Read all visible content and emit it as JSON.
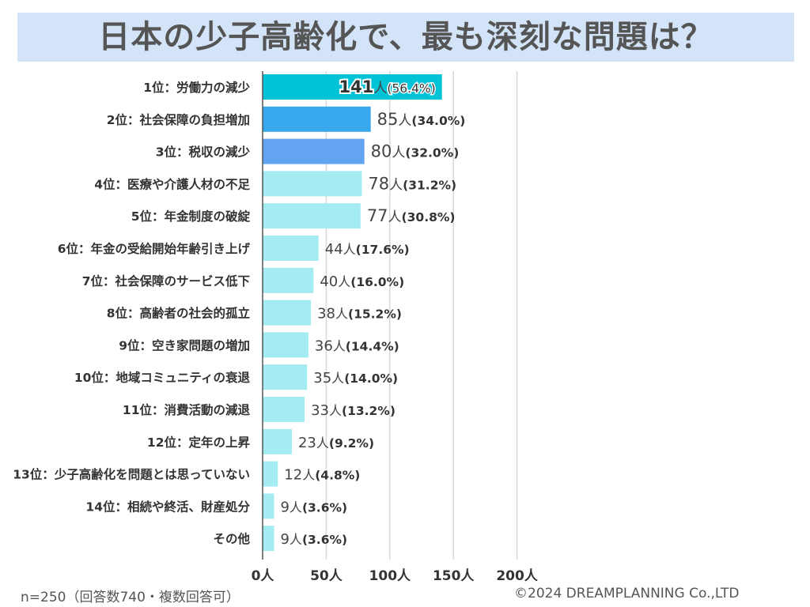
{
  "title": "日本の少子高齢化で、最も深刻な問題は？",
  "chart_data": {
    "type": "bar",
    "orientation": "horizontal",
    "title": "日本の少子高齢化で、最も深刻な問題は？",
    "xlim": [
      0,
      200
    ],
    "x_ticks": [
      0,
      50,
      100,
      150,
      200
    ],
    "x_tick_labels": [
      "0人",
      "50人",
      "100人",
      "150人",
      "200人"
    ],
    "grid": true,
    "categories": [
      "1位：労働力の減少",
      "2位：社会保障の負担増加",
      "3位：税収の減少",
      "4位：医療や介護人材の不足",
      "5位：年金制度の破綻",
      "6位：年金の受給開始年齢引き上げ",
      "7位：社会保障のサービス低下",
      "8位：高齢者の社会的孤立",
      "9位：空き家問題の増加",
      "10位：地域コミュニティの衰退",
      "11位：消費活動の減退",
      "12位：定年の上昇",
      "13位：少子高齢化を問題とは思っていない",
      "14位：相続や終活、財産処分",
      "その他"
    ],
    "values": [
      141,
      85,
      80,
      78,
      77,
      44,
      40,
      38,
      36,
      35,
      33,
      23,
      12,
      9,
      9
    ],
    "unit": "人",
    "percent_labels": [
      "(56.4%)",
      "(34.0%)",
      "(32.0%)",
      "(31.2%)",
      "(30.8%)",
      "(17.6%)",
      "(16.0%)",
      "(15.2%)",
      "(14.4%)",
      "(14.0%)",
      "(13.2%)",
      "(9.2%)",
      "(4.8%)",
      "(3.6%)",
      "(3.6%)"
    ],
    "colors": [
      "#00c3d6",
      "#37a8ec",
      "#62a3f2",
      "#a5ecf2",
      "#a5ecf2",
      "#a5ecf2",
      "#a5ecf2",
      "#a5ecf2",
      "#a5ecf2",
      "#a5ecf2",
      "#a5ecf2",
      "#a5ecf2",
      "#a5ecf2",
      "#a5ecf2",
      "#a5ecf2"
    ]
  },
  "footer": {
    "sample": "n=250（回答数740・複数回答可）",
    "copyright": "©2024 DREAMPLANNING Co.,LTD"
  }
}
